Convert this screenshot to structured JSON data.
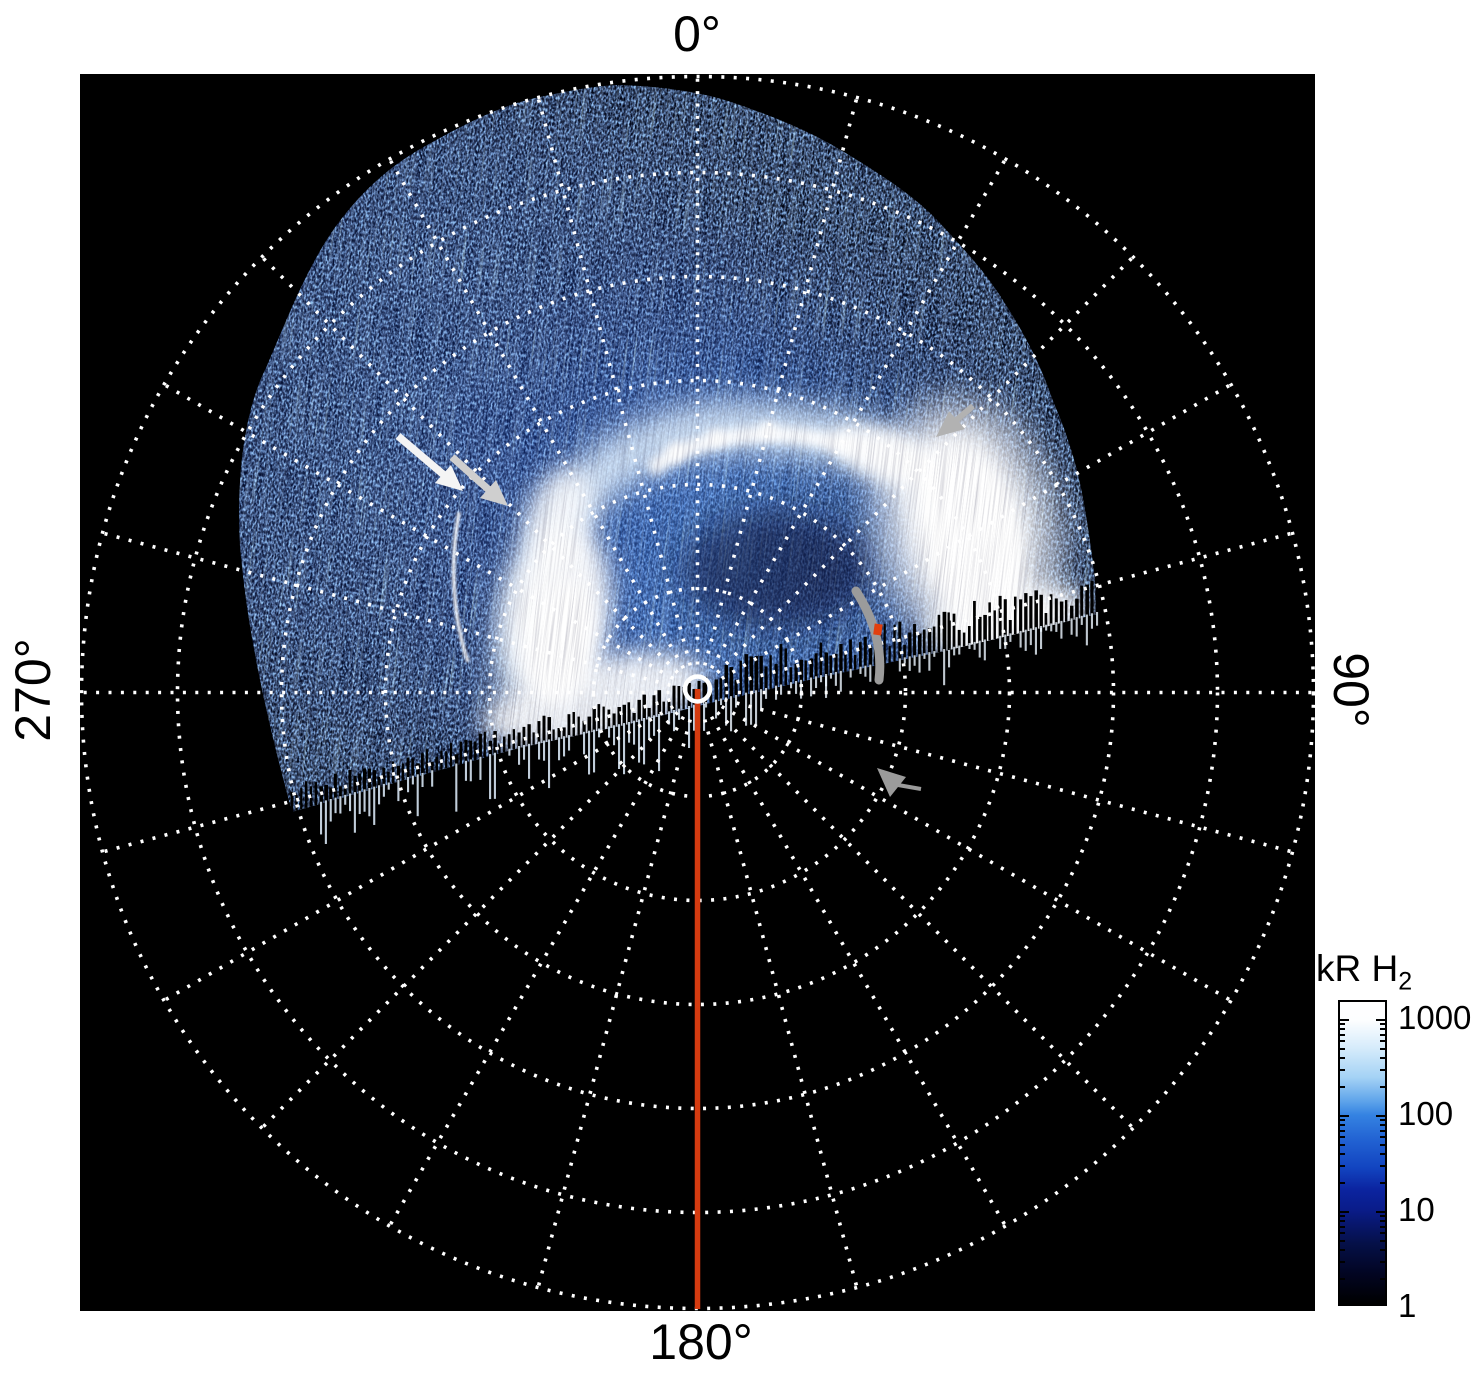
{
  "figure": {
    "angle_labels": {
      "top": "0°",
      "right": "90°",
      "bottom": "180°",
      "left": "270°"
    },
    "colorbar": {
      "title": "kR H",
      "title_sub": "2",
      "ticks": [
        "1000",
        "100",
        "10",
        "1"
      ]
    }
  },
  "chart_data": {
    "type": "heatmap",
    "projection": "polar",
    "title": "",
    "angular_tick_labels": [
      "0°",
      "90°",
      "180°",
      "270°"
    ],
    "angular_tick_positions_deg": [
      0,
      90,
      180,
      270
    ],
    "grid_style": "dotted-white",
    "radial_gridlines_count": 6,
    "angular_grid_interval_deg": 15,
    "background_color": "#000000",
    "colorbar": {
      "label": "kR H2",
      "scale": "log",
      "min": 1,
      "max": 1000,
      "tick_values": [
        1000,
        100,
        10,
        1
      ],
      "gradient": [
        "#ffffff",
        "#a4d2f5",
        "#3583e2",
        "#1244c0",
        "#0a1c8a",
        "#020522",
        "#000000"
      ]
    },
    "meridian_line": {
      "angle_deg": 180,
      "color": "#d53b10"
    },
    "pole_marker": {
      "shape": "open-circle",
      "color": "#ffffff"
    },
    "emission": {
      "species": "H2 aurora",
      "observed_sector_deg": [
        250,
        100
      ],
      "features": [
        {
          "name": "main-oval-arc",
          "azimuth_range_deg": [
            -80,
            85
          ],
          "appearance": "bright white arc"
        },
        {
          "name": "bright-patch-right",
          "azimuth_deg": 75,
          "appearance": "saturated white blob"
        },
        {
          "name": "bright-patch-left",
          "azimuth_deg": -35,
          "appearance": "saturated white blob"
        },
        {
          "name": "thin-arc-filament",
          "azimuth_deg": -55,
          "appearance": "narrow faint arc"
        },
        {
          "name": "speckle-background",
          "appearance": "noisy blue emission filling observed sector"
        }
      ]
    },
    "annotations": [
      {
        "type": "arrow",
        "color": "#f4f4f4",
        "points": "down-right toward thin arc filament"
      },
      {
        "type": "arrow",
        "color": "#cfcfcf",
        "points": "down-right toward main oval left side"
      },
      {
        "type": "arrow",
        "color": "#b2b2b2",
        "points": "down-left toward right bright patch"
      },
      {
        "type": "curve",
        "color": "#9b9b9b",
        "note": "gray curved segment with small red mark"
      },
      {
        "type": "arrow",
        "color": "#9b9b9b",
        "location": "lower-right quadrant, pointing up-left"
      }
    ]
  }
}
